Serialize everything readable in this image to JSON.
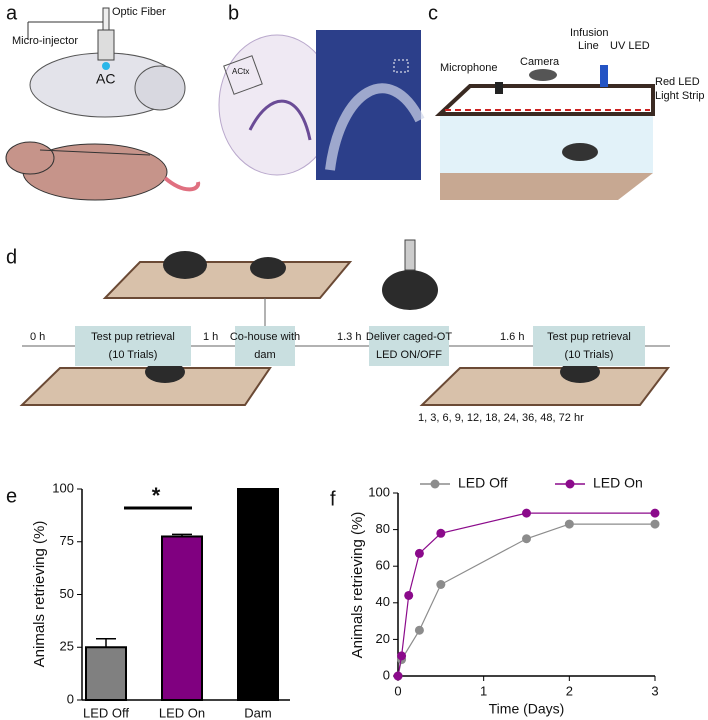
{
  "panels": {
    "a": {
      "label": "a",
      "optic_fiber": "Optic Fiber",
      "micro_injector": "Micro-injector",
      "region": "AC"
    },
    "b": {
      "label": "b",
      "region": "ACtx"
    },
    "c": {
      "label": "c",
      "microphone": "Microphone",
      "camera": "Camera",
      "infusion_line": [
        "Infusion",
        "Line"
      ],
      "uv_led": "UV LED",
      "red_led": [
        "Red LED",
        "Light Strip"
      ]
    },
    "d": {
      "label": "d",
      "steps": [
        {
          "time": "0 h",
          "lines": [
            "Test pup retrieval",
            "(10 Trials)"
          ]
        },
        {
          "time": "1 h",
          "lines": [
            "Co-house with",
            "dam"
          ]
        },
        {
          "time": "1.3 h",
          "lines": [
            "Deliver caged-OT",
            "LED ON/OFF"
          ]
        },
        {
          "time": "1.6 h",
          "lines": [
            "Test pup retrieval",
            "(10 Trials)"
          ]
        }
      ],
      "timepoints": "1, 3, 6, 9, 12, 18, 24, 36, 48, 72 hr"
    },
    "e": {
      "label": "e"
    },
    "f": {
      "label": "f"
    }
  },
  "chart_data": [
    {
      "type": "bar",
      "ylabel": "Animals retrieving (%)",
      "categories": [
        "LED Off",
        "LED On",
        "Dam"
      ],
      "values": [
        25,
        77.5,
        100
      ],
      "errors": [
        4,
        1,
        null
      ],
      "colors": [
        "#808080",
        "#800080",
        "#000000"
      ],
      "ylim": [
        0,
        100
      ],
      "yticks": [
        0,
        25,
        50,
        75,
        100
      ],
      "annotation": "*"
    },
    {
      "type": "line",
      "xlabel": "Time (Days)",
      "ylabel": "Animals retrieving (%)",
      "series": [
        {
          "name": "LED Off",
          "color": "#8c8c8c",
          "x": [
            0,
            0.042,
            0.25,
            0.5,
            1.5,
            2,
            3
          ],
          "values": [
            0,
            9,
            25,
            50,
            75,
            83,
            83
          ]
        },
        {
          "name": "LED On",
          "color": "#8b0a8b",
          "x": [
            0,
            0.042,
            0.125,
            0.25,
            0.5,
            1.5,
            3
          ],
          "values": [
            0,
            11,
            44,
            67,
            78,
            89,
            89
          ]
        }
      ],
      "xlim": [
        0,
        3
      ],
      "xticks": [
        0,
        1,
        2,
        3
      ],
      "ylim": [
        0,
        100
      ],
      "yticks": [
        0,
        20,
        40,
        60,
        80,
        100
      ],
      "legend": "top"
    }
  ]
}
